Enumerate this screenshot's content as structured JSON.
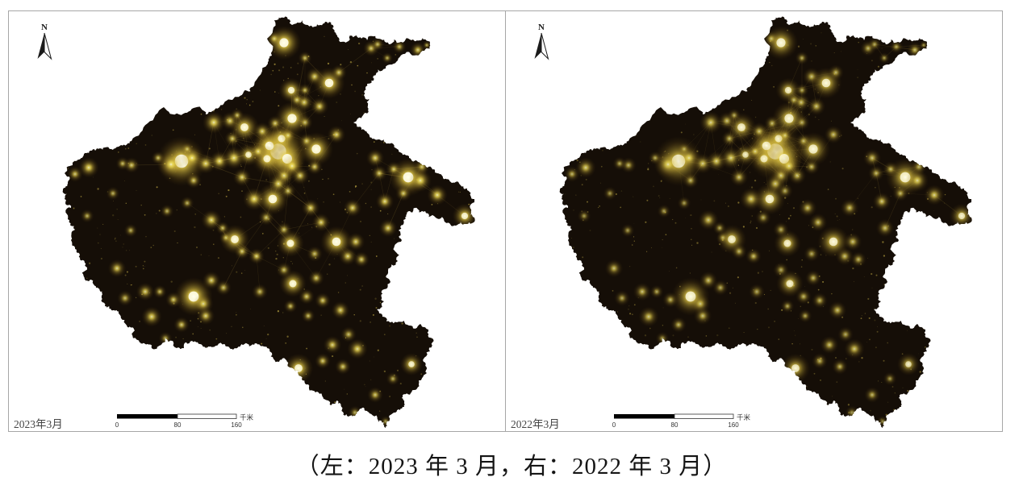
{
  "caption": "（左：2023 年 3 月，右：2022 年 3 月）",
  "compass": {
    "label": "N"
  },
  "scalebar": {
    "ticks": [
      "0",
      "80",
      "160"
    ],
    "unit": "千米"
  },
  "panels": [
    {
      "id": "p2023",
      "date_label": "2023年3月",
      "glow_scale": 1.0,
      "seed": 7
    },
    {
      "id": "p2022",
      "date_label": "2022年3月",
      "glow_scale": 0.85,
      "seed": 13
    }
  ],
  "map": {
    "colors": {
      "land": "#150e07",
      "glow_core": "#fffef0",
      "glow_mid": "#f6e65e",
      "road": "#d4b44a",
      "speckle": "#e3c94f",
      "frame_border": "#a6a6a6",
      "label_text": "#454545",
      "scalebar_black": "#000000",
      "arrow": "#1a1a1a"
    },
    "boundary": [
      [
        163,
        175
      ],
      [
        183,
        153
      ],
      [
        203,
        133
      ],
      [
        222,
        142
      ],
      [
        240,
        134
      ],
      [
        255,
        142
      ],
      [
        272,
        133
      ],
      [
        288,
        124
      ],
      [
        302,
        114
      ],
      [
        315,
        106
      ],
      [
        332,
        79
      ],
      [
        337,
        69
      ],
      [
        331,
        48
      ],
      [
        340,
        25
      ],
      [
        352,
        22
      ],
      [
        362,
        31
      ],
      [
        375,
        25
      ],
      [
        390,
        33
      ],
      [
        403,
        27
      ],
      [
        412,
        35
      ],
      [
        420,
        47
      ],
      [
        430,
        52
      ],
      [
        442,
        44
      ],
      [
        455,
        50
      ],
      [
        468,
        48
      ],
      [
        482,
        55
      ],
      [
        497,
        52
      ],
      [
        512,
        49
      ],
      [
        524,
        47
      ],
      [
        533,
        53
      ],
      [
        526,
        63
      ],
      [
        509,
        67
      ],
      [
        493,
        75
      ],
      [
        478,
        85
      ],
      [
        463,
        94
      ],
      [
        455,
        104
      ],
      [
        451,
        118
      ],
      [
        456,
        131
      ],
      [
        450,
        143
      ],
      [
        438,
        152
      ],
      [
        448,
        161
      ],
      [
        458,
        169
      ],
      [
        469,
        173
      ],
      [
        481,
        178
      ],
      [
        494,
        186
      ],
      [
        507,
        194
      ],
      [
        517,
        200
      ],
      [
        528,
        207
      ],
      [
        539,
        214
      ],
      [
        549,
        221
      ],
      [
        560,
        227
      ],
      [
        571,
        230
      ],
      [
        581,
        237
      ],
      [
        588,
        247
      ],
      [
        584,
        260
      ],
      [
        588,
        270
      ],
      [
        578,
        278
      ],
      [
        565,
        280
      ],
      [
        552,
        276
      ],
      [
        540,
        270
      ],
      [
        527,
        262
      ],
      [
        514,
        258
      ],
      [
        505,
        263
      ],
      [
        500,
        273
      ],
      [
        494,
        286
      ],
      [
        497,
        300
      ],
      [
        489,
        311
      ],
      [
        493,
        324
      ],
      [
        481,
        336
      ],
      [
        484,
        350
      ],
      [
        473,
        361
      ],
      [
        476,
        374
      ],
      [
        467,
        384
      ],
      [
        478,
        394
      ],
      [
        492,
        400
      ],
      [
        507,
        404
      ],
      [
        521,
        402
      ],
      [
        531,
        409
      ],
      [
        537,
        421
      ],
      [
        533,
        436
      ],
      [
        525,
        449
      ],
      [
        529,
        463
      ],
      [
        519,
        477
      ],
      [
        509,
        488
      ],
      [
        498,
        494
      ],
      [
        501,
        505
      ],
      [
        490,
        512
      ],
      [
        483,
        521
      ],
      [
        478,
        531
      ],
      [
        469,
        524
      ],
      [
        458,
        513
      ],
      [
        449,
        506
      ],
      [
        441,
        514
      ],
      [
        432,
        517
      ],
      [
        424,
        508
      ],
      [
        418,
        497
      ],
      [
        410,
        503
      ],
      [
        401,
        495
      ],
      [
        391,
        487
      ],
      [
        382,
        477
      ],
      [
        373,
        467
      ],
      [
        363,
        457
      ],
      [
        355,
        447
      ],
      [
        346,
        449
      ],
      [
        337,
        438
      ],
      [
        327,
        430
      ],
      [
        315,
        428
      ],
      [
        303,
        427
      ],
      [
        291,
        432
      ],
      [
        282,
        430
      ],
      [
        272,
        426
      ],
      [
        261,
        430
      ],
      [
        251,
        429
      ],
      [
        238,
        423
      ],
      [
        228,
        432
      ],
      [
        219,
        432
      ],
      [
        205,
        420
      ],
      [
        196,
        430
      ],
      [
        188,
        432
      ],
      [
        180,
        427
      ],
      [
        173,
        425
      ],
      [
        167,
        410
      ],
      [
        158,
        406
      ],
      [
        148,
        390
      ],
      [
        138,
        385
      ],
      [
        130,
        380
      ],
      [
        127,
        365
      ],
      [
        119,
        357
      ],
      [
        112,
        347
      ],
      [
        105,
        347
      ],
      [
        108,
        332
      ],
      [
        99,
        322
      ],
      [
        95,
        310
      ],
      [
        88,
        298
      ],
      [
        93,
        285
      ],
      [
        84,
        272
      ],
      [
        88,
        258
      ],
      [
        80,
        247
      ],
      [
        78,
        236
      ],
      [
        84,
        226
      ],
      [
        80,
        215
      ],
      [
        90,
        205
      ],
      [
        98,
        198
      ],
      [
        107,
        190
      ],
      [
        118,
        187
      ],
      [
        130,
        183
      ],
      [
        140,
        186
      ],
      [
        150,
        180
      ]
    ],
    "lights": [
      [
        345,
        188,
        13,
        1
      ],
      [
        356,
        197,
        8,
        0.9
      ],
      [
        334,
        181,
        7,
        0.9
      ],
      [
        349,
        172,
        6,
        0.8
      ],
      [
        331,
        197,
        6,
        0.8
      ],
      [
        362,
        206,
        5,
        0.7
      ],
      [
        352,
        218,
        4.5,
        0.65
      ],
      [
        225,
        200,
        11,
        0.95
      ],
      [
        212,
        204,
        6,
        0.7
      ],
      [
        238,
        196,
        5,
        0.7
      ],
      [
        255,
        203,
        4.5,
        0.65
      ],
      [
        272,
        200,
        4.5,
        0.7
      ],
      [
        290,
        196,
        5,
        0.7
      ],
      [
        308,
        192,
        5,
        0.75
      ],
      [
        320,
        188,
        4,
        0.65
      ],
      [
        392,
        185,
        7.5,
        0.9
      ],
      [
        417,
        167,
        4,
        0.6
      ],
      [
        380,
        175,
        3.5,
        0.55
      ],
      [
        362,
        147,
        7.5,
        0.9
      ],
      [
        377,
        127,
        4,
        0.6
      ],
      [
        341,
        153,
        3.5,
        0.55
      ],
      [
        357,
        168,
        3.5,
        0.55
      ],
      [
        303,
        158,
        6.5,
        0.85
      ],
      [
        285,
        150,
        4,
        0.6
      ],
      [
        294,
        143,
        3,
        0.5
      ],
      [
        325,
        163,
        4,
        0.6
      ],
      [
        288,
        172,
        3.5,
        0.55
      ],
      [
        265,
        152,
        5,
        0.7
      ],
      [
        361,
        112,
        5.5,
        0.8
      ],
      [
        368,
        124,
        3.5,
        0.55
      ],
      [
        378,
        112,
        3,
        0.5
      ],
      [
        352,
        53,
        7.5,
        0.95
      ],
      [
        340,
        48,
        3.5,
        0.55
      ],
      [
        378,
        72,
        3,
        0.5
      ],
      [
        390,
        95,
        4,
        0.6
      ],
      [
        396,
        132,
        4,
        0.6
      ],
      [
        378,
        152,
        3.5,
        0.5
      ],
      [
        408,
        103,
        7,
        0.9
      ],
      [
        420,
        90,
        3.5,
        0.55
      ],
      [
        460,
        60,
        3.5,
        0.55
      ],
      [
        468,
        55,
        3,
        0.5
      ],
      [
        495,
        58,
        3,
        0.5
      ],
      [
        518,
        62,
        3.5,
        0.6
      ],
      [
        529,
        56,
        2,
        0.45
      ],
      [
        480,
        72,
        2.5,
        0.45
      ],
      [
        506,
        220,
        8.5,
        0.95
      ],
      [
        521,
        224,
        5,
        0.7
      ],
      [
        523,
        207,
        3.5,
        0.55
      ],
      [
        488,
        210,
        3.5,
        0.55
      ],
      [
        465,
        196,
        4,
        0.6
      ],
      [
        470,
        215,
        3.5,
        0.55
      ],
      [
        542,
        242,
        4.5,
        0.7
      ],
      [
        576,
        268,
        5.5,
        0.8
      ],
      [
        500,
        240,
        3.5,
        0.55
      ],
      [
        338,
        247,
        7,
        0.9
      ],
      [
        345,
        228,
        4.5,
        0.65
      ],
      [
        315,
        247,
        5,
        0.7
      ],
      [
        357,
        237,
        3.5,
        0.5
      ],
      [
        372,
        218,
        4,
        0.6
      ],
      [
        390,
        207,
        3.5,
        0.55
      ],
      [
        291,
        297,
        6.5,
        0.85
      ],
      [
        262,
        273,
        4.5,
        0.65
      ],
      [
        276,
        283,
        3,
        0.5
      ],
      [
        280,
        295,
        3,
        0.5
      ],
      [
        300,
        312,
        3.5,
        0.55
      ],
      [
        318,
        318,
        3.5,
        0.6
      ],
      [
        360,
        302,
        6,
        0.85
      ],
      [
        352,
        285,
        3.5,
        0.5
      ],
      [
        330,
        270,
        3.5,
        0.5
      ],
      [
        417,
        300,
        7,
        0.9
      ],
      [
        398,
        276,
        4,
        0.6
      ],
      [
        385,
        258,
        4,
        0.6
      ],
      [
        441,
        300,
        4,
        0.6
      ],
      [
        437,
        258,
        4,
        0.6
      ],
      [
        477,
        250,
        4,
        0.65
      ],
      [
        481,
        283,
        4,
        0.6
      ],
      [
        448,
        322,
        3.5,
        0.55
      ],
      [
        431,
        318,
        4,
        0.6
      ],
      [
        390,
        315,
        3.5,
        0.5
      ],
      [
        363,
        352,
        6,
        0.85
      ],
      [
        352,
        335,
        3.5,
        0.5
      ],
      [
        392,
        345,
        3.5,
        0.55
      ],
      [
        380,
        368,
        3.5,
        0.55
      ],
      [
        400,
        373,
        3.5,
        0.55
      ],
      [
        422,
        385,
        4,
        0.6
      ],
      [
        382,
        392,
        3,
        0.5
      ],
      [
        360,
        380,
        3,
        0.5
      ],
      [
        322,
        362,
        3.5,
        0.5
      ],
      [
        240,
        368,
        8.5,
        0.95
      ],
      [
        252,
        377,
        4.5,
        0.6
      ],
      [
        262,
        348,
        4,
        0.6
      ],
      [
        277,
        357,
        3.5,
        0.5
      ],
      [
        255,
        392,
        4,
        0.6
      ],
      [
        225,
        403,
        3.5,
        0.55
      ],
      [
        188,
        393,
        4.5,
        0.65
      ],
      [
        215,
        372,
        3.5,
        0.55
      ],
      [
        198,
        362,
        3,
        0.5
      ],
      [
        145,
        333,
        4,
        0.6
      ],
      [
        155,
        370,
        3.5,
        0.5
      ],
      [
        180,
        362,
        4,
        0.6
      ],
      [
        205,
        420,
        3,
        0.45
      ],
      [
        370,
        457,
        6.5,
        0.85
      ],
      [
        400,
        448,
        3.5,
        0.55
      ],
      [
        412,
        428,
        4,
        0.6
      ],
      [
        432,
        415,
        3.5,
        0.5
      ],
      [
        443,
        433,
        4.5,
        0.65
      ],
      [
        425,
        455,
        3.5,
        0.55
      ],
      [
        465,
        490,
        3.5,
        0.55
      ],
      [
        510,
        452,
        5,
        0.75
      ],
      [
        487,
        470,
        3,
        0.45
      ],
      [
        440,
        512,
        3,
        0.45
      ],
      [
        407,
        508,
        3,
        0.45
      ],
      [
        478,
        523,
        2.5,
        0.4
      ],
      [
        110,
        208,
        4.5,
        0.7
      ],
      [
        93,
        216,
        3.5,
        0.55
      ],
      [
        152,
        203,
        3,
        0.5
      ],
      [
        163,
        205,
        3.5,
        0.55
      ],
      [
        196,
        196,
        3,
        0.5
      ],
      [
        140,
        240,
        3,
        0.45
      ],
      [
        108,
        268,
        3,
        0.45
      ],
      [
        162,
        286,
        3,
        0.45
      ],
      [
        207,
        262,
        3,
        0.45
      ],
      [
        232,
        252,
        3,
        0.45
      ],
      [
        240,
        224,
        3.5,
        0.55
      ],
      [
        300,
        220,
        4,
        0.6
      ],
      [
        232,
        185,
        3,
        0.45
      ]
    ]
  }
}
